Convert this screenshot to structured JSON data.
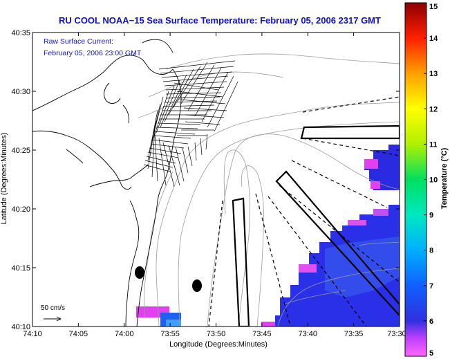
{
  "chart_data": {
    "type": "heatmap",
    "title": "RU COOL  NOAA−15  Sea Surface Temperature:  February 05, 2006 2317 GMT",
    "annotation_line1": "Raw Surface Current:",
    "annotation_line2": "February 05, 2006 23:00 GMT",
    "xlabel": "Longitude (Degrees:Minutes)",
    "ylabel": "Latitude (Degrees:Minutes)",
    "x_ticks": [
      "74:10",
      "74:05",
      "74:00",
      "73:55",
      "73:50",
      "73:45",
      "73:40",
      "73:35",
      "73:30"
    ],
    "y_ticks": [
      "40:10",
      "40:15",
      "40:20",
      "40:25",
      "40:30",
      "40:35"
    ],
    "xlim_minutes_west": [
      10,
      -30
    ],
    "ylim_minutes_north": [
      10,
      35
    ],
    "colorbar": {
      "label": "Temperature (°C)",
      "min": 5,
      "max": 15,
      "ticks": [
        "5",
        "6",
        "7",
        "8",
        "9",
        "10",
        "11",
        "12",
        "13",
        "14",
        "15"
      ],
      "colors": [
        "#ff66ff",
        "#2828e8",
        "#00a8ff",
        "#00e0d0",
        "#00e060",
        "#a0e800",
        "#ffff00",
        "#ffb000",
        "#ff5000",
        "#e80000",
        "#8c0000"
      ]
    },
    "scale_label": "50 cm/s",
    "grid": false
  }
}
